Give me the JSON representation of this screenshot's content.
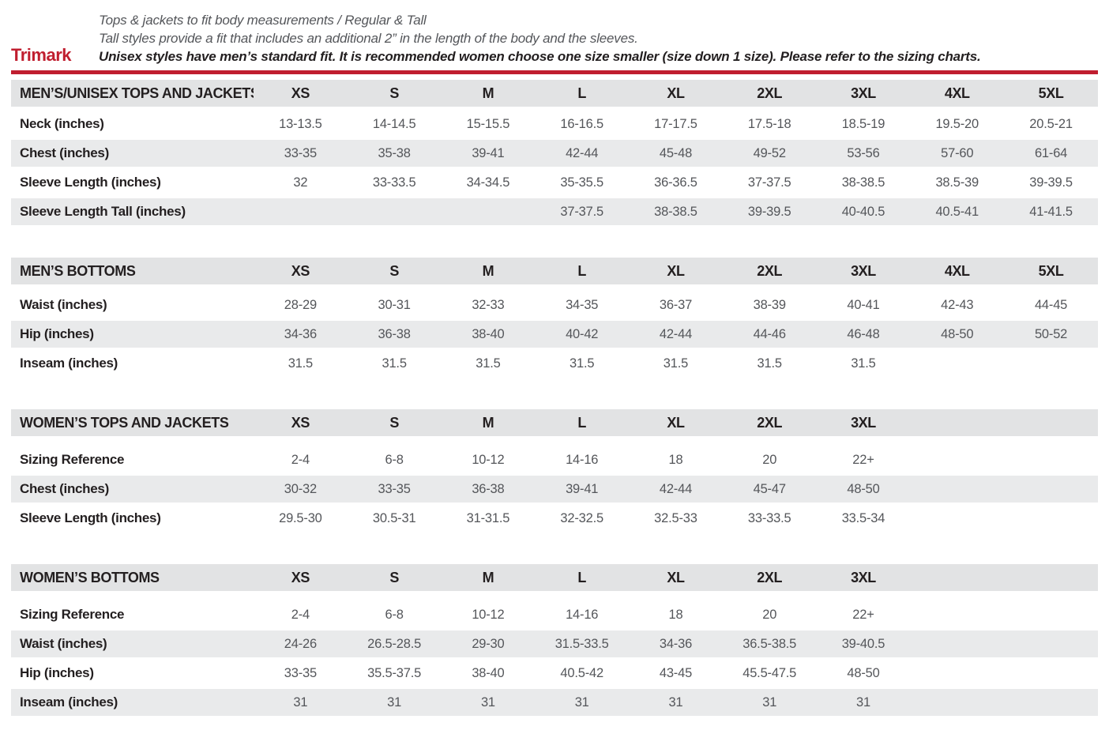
{
  "brand": {
    "logo": "Trimark",
    "accent_color": "#c01e2f",
    "stripe_color": "#e9eaeb",
    "header_row_color": "#e2e3e4"
  },
  "intro": {
    "line1": "Tops & jackets to fit body measurements / Regular & Tall",
    "line2": "Tall styles provide a fit that includes an additional 2” in the length of the body and the sleeves.",
    "line3": "Unisex styles have men’s standard fit. It is recommended women choose one size smaller (size down 1 size).  Please refer to the sizing charts."
  },
  "tables": [
    {
      "id": "mens-unisex-tops-and-jackets",
      "title": "MEN’S/UNISEX TOPS AND JACKETS",
      "sizes": [
        "XS",
        "S",
        "M",
        "L",
        "XL",
        "2XL",
        "3XL",
        "4XL",
        "5XL"
      ],
      "rows": [
        {
          "label": "Neck (inches)",
          "values": [
            "13-13.5",
            "14-14.5",
            "15-15.5",
            "16-16.5",
            "17-17.5",
            "17.5-18",
            "18.5-19",
            "19.5-20",
            "20.5-21"
          ]
        },
        {
          "label": "Chest (inches)",
          "values": [
            "33-35",
            "35-38",
            "39-41",
            "42-44",
            "45-48",
            "49-52",
            "53-56",
            "57-60",
            "61-64"
          ]
        },
        {
          "label": "Sleeve Length (inches)",
          "values": [
            "32",
            "33-33.5",
            "34-34.5",
            "35-35.5",
            "36-36.5",
            "37-37.5",
            "38-38.5",
            "38.5-39",
            "39-39.5"
          ]
        },
        {
          "label": "Sleeve Length Tall (inches)",
          "values": [
            "",
            "",
            "",
            "37-37.5",
            "38-38.5",
            "39-39.5",
            "40-40.5",
            "40.5-41",
            "41-41.5"
          ]
        }
      ]
    },
    {
      "id": "mens-bottoms",
      "title": "MEN’S BOTTOMS",
      "sizes": [
        "XS",
        "S",
        "M",
        "L",
        "XL",
        "2XL",
        "3XL",
        "4XL",
        "5XL"
      ],
      "rows": [
        {
          "label": "Waist (inches)",
          "values": [
            "28-29",
            "30-31",
            "32-33",
            "34-35",
            "36-37",
            "38-39",
            "40-41",
            "42-43",
            "44-45"
          ]
        },
        {
          "label": "Hip (inches)",
          "values": [
            "34-36",
            "36-38",
            "38-40",
            "40-42",
            "42-44",
            "44-46",
            "46-48",
            "48-50",
            "50-52"
          ]
        },
        {
          "label": "Inseam (inches)",
          "values": [
            "31.5",
            "31.5",
            "31.5",
            "31.5",
            "31.5",
            "31.5",
            "31.5",
            "",
            ""
          ]
        }
      ]
    },
    {
      "id": "womens-tops-and-jackets",
      "title": "WOMEN’S TOPS AND JACKETS",
      "sizes": [
        "XS",
        "S",
        "M",
        "L",
        "XL",
        "2XL",
        "3XL"
      ],
      "rows": [
        {
          "label": "Sizing Reference",
          "values": [
            "2-4",
            "6-8",
            "10-12",
            "14-16",
            "18",
            "20",
            "22+"
          ]
        },
        {
          "label": "Chest (inches)",
          "values": [
            "30-32",
            "33-35",
            "36-38",
            "39-41",
            "42-44",
            "45-47",
            "48-50"
          ]
        },
        {
          "label": "Sleeve Length (inches)",
          "values": [
            "29.5-30",
            "30.5-31",
            "31-31.5",
            "32-32.5",
            "32.5-33",
            "33-33.5",
            "33.5-34"
          ]
        }
      ]
    },
    {
      "id": "womens-bottoms",
      "title": "WOMEN’S BOTTOMS",
      "sizes": [
        "XS",
        "S",
        "M",
        "L",
        "XL",
        "2XL",
        "3XL"
      ],
      "rows": [
        {
          "label": "Sizing Reference",
          "values": [
            "2-4",
            "6-8",
            "10-12",
            "14-16",
            "18",
            "20",
            "22+"
          ]
        },
        {
          "label": "Waist (inches)",
          "values": [
            "24-26",
            "26.5-28.5",
            "29-30",
            "31.5-33.5",
            "34-36",
            "36.5-38.5",
            "39-40.5"
          ]
        },
        {
          "label": "Hip (inches)",
          "values": [
            "33-35",
            "35.5-37.5",
            "38-40",
            "40.5-42",
            "43-45",
            "45.5-47.5",
            "48-50"
          ]
        },
        {
          "label": "Inseam (inches)",
          "values": [
            "31",
            "31",
            "31",
            "31",
            "31",
            "31",
            "31"
          ]
        }
      ]
    }
  ]
}
